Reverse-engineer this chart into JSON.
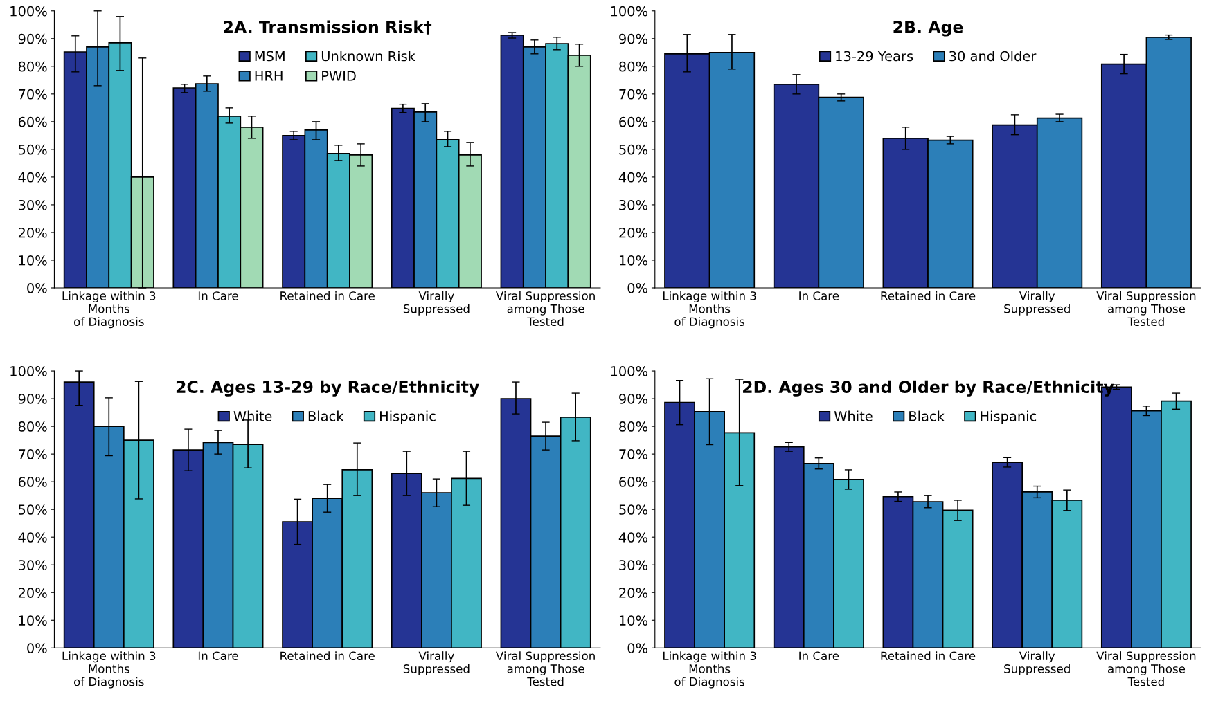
{
  "chart_data": [
    {
      "type": "bar",
      "title": "2A. Transmission Risk†",
      "categories": [
        "Linkage within 3\nMonths\nof Diagnosis",
        "In Care",
        "Retained in Care",
        "Virally\nSuppressed",
        "Viral Suppression\namong Those\nTested"
      ],
      "ylim": [
        0,
        100
      ],
      "yticks": [
        {
          "value": 0,
          "label": "0%"
        },
        {
          "value": 10,
          "label": "10%"
        },
        {
          "value": 20,
          "label": "20%"
        },
        {
          "value": 30,
          "label": "30%"
        },
        {
          "value": 40,
          "label": "40%"
        },
        {
          "value": 50,
          "label": "50%"
        },
        {
          "value": 60,
          "label": "60%"
        },
        {
          "value": 70,
          "label": "70%"
        },
        {
          "value": 80,
          "label": "80%"
        },
        {
          "value": 90,
          "label": "90%"
        },
        {
          "value": 100,
          "label": "100%"
        }
      ],
      "legend": "top",
      "grid": false,
      "series": [
        {
          "name": "MSM",
          "color": "#253494",
          "values": [
            85.2,
            72.2,
            55,
            64.8,
            91.2
          ],
          "errors": [
            [
              78,
              91
            ],
            [
              70.5,
              73.5
            ],
            [
              53.5,
              56.5
            ],
            [
              63.3,
              66.3
            ],
            [
              90.2,
              92.2
            ]
          ]
        },
        {
          "name": "HRH",
          "color": "#2c7fb8",
          "values": [
            87,
            73.7,
            57,
            63.5,
            87
          ],
          "errors": [
            [
              73,
              100
            ],
            [
              71,
              76.5
            ],
            [
              53.5,
              60
            ],
            [
              60,
              66.5
            ],
            [
              84.5,
              89.5
            ]
          ]
        },
        {
          "name": "Unknown Risk",
          "color": "#41b6c4",
          "values": [
            88.5,
            62,
            48.5,
            53.5,
            88.2
          ],
          "errors": [
            [
              78.5,
              98
            ],
            [
              59.5,
              65
            ],
            [
              46,
              51.5
            ],
            [
              51,
              56.5
            ],
            [
              86,
              90.5
            ]
          ]
        },
        {
          "name": "PWID",
          "color": "#a1dab4",
          "values": [
            40,
            58,
            48,
            48,
            84
          ],
          "errors": [
            [
              0,
              83
            ],
            [
              54,
              62
            ],
            [
              44,
              52
            ],
            [
              44,
              52.5
            ],
            [
              80,
              88
            ]
          ]
        }
      ]
    },
    {
      "type": "bar",
      "title": "2B. Age",
      "categories": [
        "Linkage within 3\nMonths\nof Diagnosis",
        "In Care",
        "Retained in Care",
        "Virally\nSuppressed",
        "Viral Suppression\namong Those\nTested"
      ],
      "ylim": [
        0,
        100
      ],
      "yticks": [
        {
          "value": 0,
          "label": "0%"
        },
        {
          "value": 10,
          "label": "10%"
        },
        {
          "value": 20,
          "label": "20%"
        },
        {
          "value": 30,
          "label": "30%"
        },
        {
          "value": 40,
          "label": "40%"
        },
        {
          "value": 50,
          "label": "50%"
        },
        {
          "value": 60,
          "label": "60%"
        },
        {
          "value": 70,
          "label": "70%"
        },
        {
          "value": 80,
          "label": "80%"
        },
        {
          "value": 90,
          "label": "90%"
        },
        {
          "value": 100,
          "label": "100%"
        }
      ],
      "legend": "top",
      "grid": false,
      "series": [
        {
          "name": "13-29 Years",
          "color": "#253494",
          "values": [
            84.5,
            73.5,
            54,
            58.8,
            80.8
          ],
          "errors": [
            [
              78,
              91.5
            ],
            [
              70,
              77
            ],
            [
              50,
              58
            ],
            [
              55.3,
              62.5
            ],
            [
              77.3,
              84.3
            ]
          ]
        },
        {
          "name": "30 and Older",
          "color": "#2c7fb8",
          "values": [
            85,
            68.8,
            53.3,
            61.3,
            90.5
          ],
          "errors": [
            [
              79,
              91.5
            ],
            [
              67.5,
              70
            ],
            [
              52,
              54.7
            ],
            [
              60,
              62.7
            ],
            [
              89.7,
              91.3
            ]
          ]
        }
      ]
    },
    {
      "type": "bar",
      "title": "2C. Ages 13-29 by Race/Ethnicity",
      "categories": [
        "Linkage within 3\nMonths\nof Diagnosis",
        "In Care",
        "Retained in Care",
        "Virally\nSuppressed",
        "Viral Suppression\namong Those\nTested"
      ],
      "ylim": [
        0,
        100
      ],
      "yticks": [
        {
          "value": 0,
          "label": "0%"
        },
        {
          "value": 10,
          "label": "10%"
        },
        {
          "value": 20,
          "label": "20%"
        },
        {
          "value": 30,
          "label": "30%"
        },
        {
          "value": 40,
          "label": "40%"
        },
        {
          "value": 50,
          "label": "50%"
        },
        {
          "value": 60,
          "label": "60%"
        },
        {
          "value": 70,
          "label": "70%"
        },
        {
          "value": 80,
          "label": "80%"
        },
        {
          "value": 90,
          "label": "90%"
        },
        {
          "value": 100,
          "label": "100%"
        }
      ],
      "legend": "top",
      "grid": false,
      "series": [
        {
          "name": "White",
          "color": "#253494",
          "values": [
            96,
            71.5,
            45.5,
            63,
            90
          ],
          "errors": [
            [
              87.6,
              100
            ],
            [
              64,
              79
            ],
            [
              37.4,
              53.7
            ],
            [
              55,
              71
            ],
            [
              84.5,
              96
            ]
          ]
        },
        {
          "name": "Black",
          "color": "#2c7fb8",
          "values": [
            80,
            74.2,
            54,
            56,
            76.5
          ],
          "errors": [
            [
              69.4,
              90.3
            ],
            [
              70,
              78.5
            ],
            [
              49,
              59
            ],
            [
              51,
              61
            ],
            [
              71.5,
              81.5
            ]
          ]
        },
        {
          "name": "Hispanic",
          "color": "#41b6c4",
          "values": [
            75,
            73.5,
            64.3,
            61.2,
            83.3
          ],
          "errors": [
            [
              53.8,
              96.2
            ],
            [
              65,
              82.3
            ],
            [
              55,
              74
            ],
            [
              51.5,
              71
            ],
            [
              74.8,
              92
            ]
          ]
        }
      ]
    },
    {
      "type": "bar",
      "title": "2D. Ages 30 and Older by Race/Ethnicity",
      "categories": [
        "Linkage within 3\nMonths\nof Diagnosis",
        "In Care",
        "Retained in Care",
        "Virally\nSuppressed",
        "Viral Suppression\namong Those\nTested"
      ],
      "ylim": [
        0,
        100
      ],
      "yticks": [
        {
          "value": 0,
          "label": "0%"
        },
        {
          "value": 10,
          "label": "10%"
        },
        {
          "value": 20,
          "label": "20%"
        },
        {
          "value": 30,
          "label": "30%"
        },
        {
          "value": 40,
          "label": "40%"
        },
        {
          "value": 50,
          "label": "50%"
        },
        {
          "value": 60,
          "label": "60%"
        },
        {
          "value": 70,
          "label": "70%"
        },
        {
          "value": 80,
          "label": "80%"
        },
        {
          "value": 90,
          "label": "90%"
        },
        {
          "value": 100,
          "label": "100%"
        }
      ],
      "legend": "top",
      "grid": false,
      "series": [
        {
          "name": "White",
          "color": "#253494",
          "values": [
            88.6,
            72.6,
            54.6,
            67,
            94.2
          ],
          "errors": [
            [
              80.6,
              96.6
            ],
            [
              71,
              74.2
            ],
            [
              52.9,
              56.3
            ],
            [
              65.3,
              68.7
            ],
            [
              93.4,
              95
            ]
          ]
        },
        {
          "name": "Black",
          "color": "#2c7fb8",
          "values": [
            85.3,
            66.6,
            52.8,
            56.3,
            85.6
          ],
          "errors": [
            [
              73.4,
              97.2
            ],
            [
              64.6,
              68.6
            ],
            [
              50.6,
              55
            ],
            [
              54.2,
              58.4
            ],
            [
              83.9,
              87.3
            ]
          ]
        },
        {
          "name": "Hispanic",
          "color": "#41b6c4",
          "values": [
            77.7,
            60.8,
            49.7,
            53.3,
            89.1
          ],
          "errors": [
            [
              58.6,
              97
            ],
            [
              57.3,
              64.3
            ],
            [
              46,
              53.3
            ],
            [
              49.6,
              57
            ],
            [
              86.2,
              92
            ]
          ]
        }
      ]
    }
  ]
}
